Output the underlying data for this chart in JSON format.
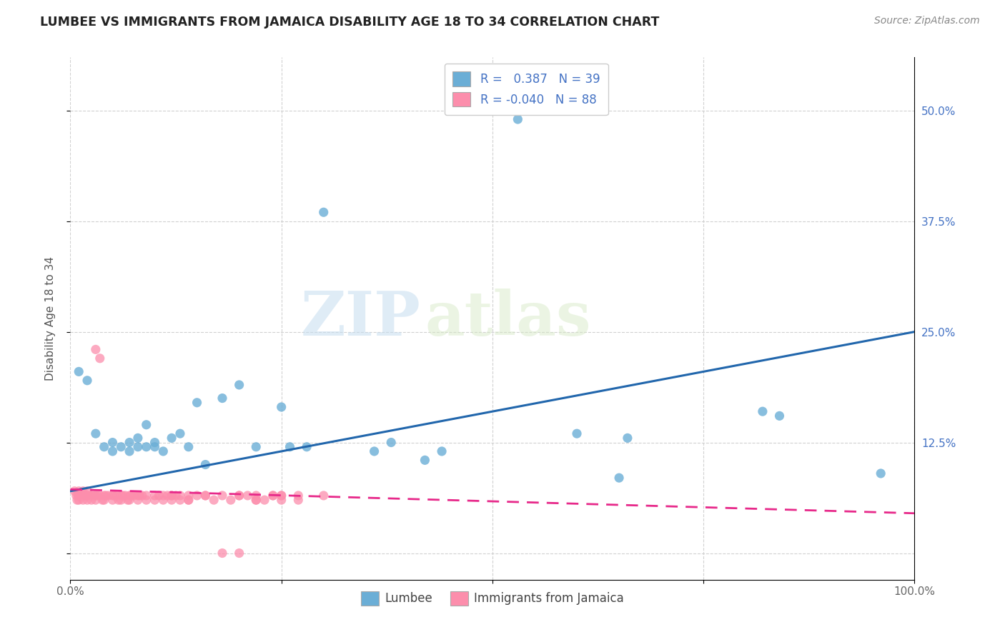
{
  "title": "LUMBEE VS IMMIGRANTS FROM JAMAICA DISABILITY AGE 18 TO 34 CORRELATION CHART",
  "source": "Source: ZipAtlas.com",
  "ylabel": "Disability Age 18 to 34",
  "watermark_zip": "ZIP",
  "watermark_atlas": "atlas",
  "lumbee_R": 0.387,
  "lumbee_N": 39,
  "jamaica_R": -0.04,
  "jamaica_N": 88,
  "xlim": [
    0.0,
    1.0
  ],
  "ylim": [
    -0.03,
    0.56
  ],
  "xticks": [
    0.0,
    0.25,
    0.5,
    0.75,
    1.0
  ],
  "xticklabels": [
    "0.0%",
    "",
    "",
    "",
    "100.0%"
  ],
  "yticks": [
    0.0,
    0.125,
    0.25,
    0.375,
    0.5
  ],
  "right_yticklabels": [
    "",
    "12.5%",
    "25.0%",
    "37.5%",
    "50.0%"
  ],
  "lumbee_color": "#6baed6",
  "jamaica_color": "#fc8eac",
  "lumbee_line_color": "#2166ac",
  "jamaica_line_color": "#e7298a",
  "background_color": "#ffffff",
  "lumbee_line_x0": 0.0,
  "lumbee_line_y0": 0.07,
  "lumbee_line_x1": 1.0,
  "lumbee_line_y1": 0.25,
  "jamaica_line_x0": 0.0,
  "jamaica_line_y0": 0.072,
  "jamaica_line_x1": 1.0,
  "jamaica_line_y1": 0.045,
  "lumbee_points": [
    [
      0.01,
      0.205
    ],
    [
      0.02,
      0.195
    ],
    [
      0.03,
      0.135
    ],
    [
      0.04,
      0.12
    ],
    [
      0.05,
      0.125
    ],
    [
      0.05,
      0.115
    ],
    [
      0.06,
      0.12
    ],
    [
      0.07,
      0.115
    ],
    [
      0.07,
      0.125
    ],
    [
      0.08,
      0.12
    ],
    [
      0.08,
      0.13
    ],
    [
      0.09,
      0.12
    ],
    [
      0.09,
      0.145
    ],
    [
      0.1,
      0.125
    ],
    [
      0.1,
      0.12
    ],
    [
      0.11,
      0.115
    ],
    [
      0.12,
      0.13
    ],
    [
      0.13,
      0.135
    ],
    [
      0.14,
      0.12
    ],
    [
      0.15,
      0.17
    ],
    [
      0.16,
      0.1
    ],
    [
      0.18,
      0.175
    ],
    [
      0.2,
      0.19
    ],
    [
      0.22,
      0.12
    ],
    [
      0.25,
      0.165
    ],
    [
      0.26,
      0.12
    ],
    [
      0.28,
      0.12
    ],
    [
      0.3,
      0.385
    ],
    [
      0.36,
      0.115
    ],
    [
      0.38,
      0.125
    ],
    [
      0.42,
      0.105
    ],
    [
      0.44,
      0.115
    ],
    [
      0.53,
      0.49
    ],
    [
      0.6,
      0.135
    ],
    [
      0.65,
      0.085
    ],
    [
      0.66,
      0.13
    ],
    [
      0.82,
      0.16
    ],
    [
      0.84,
      0.155
    ],
    [
      0.96,
      0.09
    ]
  ],
  "jamaica_points": [
    [
      0.005,
      0.07
    ],
    [
      0.007,
      0.065
    ],
    [
      0.008,
      0.06
    ],
    [
      0.009,
      0.065
    ],
    [
      0.01,
      0.07
    ],
    [
      0.01,
      0.065
    ],
    [
      0.01,
      0.06
    ],
    [
      0.012,
      0.065
    ],
    [
      0.015,
      0.07
    ],
    [
      0.015,
      0.06
    ],
    [
      0.017,
      0.065
    ],
    [
      0.018,
      0.065
    ],
    [
      0.02,
      0.07
    ],
    [
      0.02,
      0.065
    ],
    [
      0.02,
      0.06
    ],
    [
      0.022,
      0.065
    ],
    [
      0.025,
      0.065
    ],
    [
      0.025,
      0.06
    ],
    [
      0.028,
      0.065
    ],
    [
      0.03,
      0.23
    ],
    [
      0.03,
      0.065
    ],
    [
      0.03,
      0.06
    ],
    [
      0.032,
      0.065
    ],
    [
      0.035,
      0.22
    ],
    [
      0.035,
      0.065
    ],
    [
      0.038,
      0.06
    ],
    [
      0.04,
      0.065
    ],
    [
      0.04,
      0.06
    ],
    [
      0.042,
      0.065
    ],
    [
      0.045,
      0.065
    ],
    [
      0.05,
      0.065
    ],
    [
      0.05,
      0.06
    ],
    [
      0.052,
      0.065
    ],
    [
      0.055,
      0.065
    ],
    [
      0.057,
      0.06
    ],
    [
      0.06,
      0.065
    ],
    [
      0.06,
      0.06
    ],
    [
      0.062,
      0.065
    ],
    [
      0.065,
      0.065
    ],
    [
      0.068,
      0.06
    ],
    [
      0.07,
      0.065
    ],
    [
      0.07,
      0.06
    ],
    [
      0.072,
      0.065
    ],
    [
      0.075,
      0.065
    ],
    [
      0.08,
      0.065
    ],
    [
      0.08,
      0.06
    ],
    [
      0.082,
      0.065
    ],
    [
      0.085,
      0.065
    ],
    [
      0.09,
      0.065
    ],
    [
      0.09,
      0.06
    ],
    [
      0.1,
      0.065
    ],
    [
      0.1,
      0.06
    ],
    [
      0.105,
      0.065
    ],
    [
      0.11,
      0.065
    ],
    [
      0.11,
      0.06
    ],
    [
      0.115,
      0.065
    ],
    [
      0.12,
      0.065
    ],
    [
      0.12,
      0.06
    ],
    [
      0.125,
      0.065
    ],
    [
      0.13,
      0.065
    ],
    [
      0.13,
      0.06
    ],
    [
      0.14,
      0.065
    ],
    [
      0.14,
      0.06
    ],
    [
      0.15,
      0.065
    ],
    [
      0.16,
      0.065
    ],
    [
      0.17,
      0.06
    ],
    [
      0.18,
      0.065
    ],
    [
      0.19,
      0.06
    ],
    [
      0.2,
      0.065
    ],
    [
      0.21,
      0.065
    ],
    [
      0.22,
      0.065
    ],
    [
      0.23,
      0.06
    ],
    [
      0.24,
      0.065
    ],
    [
      0.25,
      0.065
    ],
    [
      0.25,
      0.06
    ],
    [
      0.27,
      0.065
    ],
    [
      0.18,
      0.0
    ],
    [
      0.2,
      0.0
    ],
    [
      0.22,
      0.06
    ],
    [
      0.24,
      0.065
    ],
    [
      0.12,
      0.065
    ],
    [
      0.14,
      0.06
    ],
    [
      0.16,
      0.065
    ],
    [
      0.2,
      0.065
    ],
    [
      0.22,
      0.06
    ],
    [
      0.25,
      0.065
    ],
    [
      0.27,
      0.06
    ],
    [
      0.3,
      0.065
    ]
  ]
}
